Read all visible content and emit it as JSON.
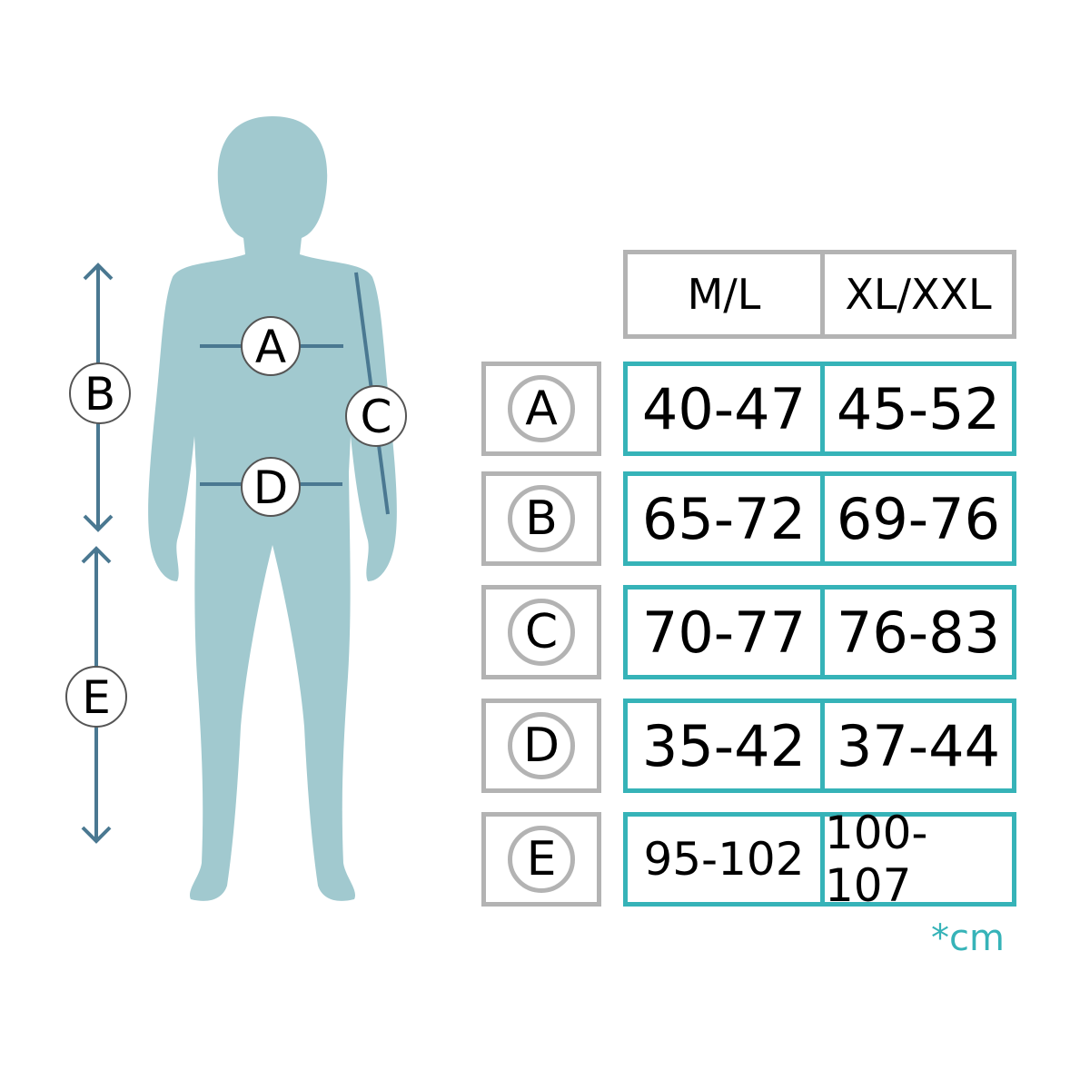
{
  "colors": {
    "silhouette": "#a1c9cf",
    "measure_line": "#4a7891",
    "table_border_gray": "#b3b3b3",
    "table_border_teal": "#36b3b8"
  },
  "figure_labels": {
    "A": "A",
    "B": "B",
    "C": "C",
    "D": "D",
    "E": "E"
  },
  "table": {
    "headers": [
      "M/L",
      "XL/XXL"
    ],
    "rows": [
      {
        "label": "A",
        "values": [
          "40-47",
          "45-52"
        ]
      },
      {
        "label": "B",
        "values": [
          "65-72",
          "69-76"
        ]
      },
      {
        "label": "C",
        "values": [
          "70-77",
          "76-83"
        ]
      },
      {
        "label": "D",
        "values": [
          "35-42",
          "37-44"
        ]
      },
      {
        "label": "E",
        "values": [
          "95-102",
          "100-107"
        ]
      }
    ],
    "unit": "*cm"
  }
}
